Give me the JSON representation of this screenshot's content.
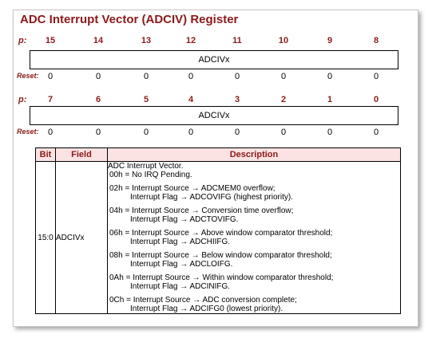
{
  "title": "ADC Interrupt Vector (ADCIV) Register",
  "bit_label": "p:",
  "reset_label": "Reset:",
  "upper": {
    "bits": [
      "15",
      "14",
      "13",
      "12",
      "11",
      "10",
      "9",
      "8"
    ],
    "field": "ADCIVx",
    "resets": [
      "0",
      "0",
      "0",
      "0",
      "0",
      "0",
      "0",
      "0"
    ]
  },
  "lower": {
    "bits": [
      "7",
      "6",
      "5",
      "4",
      "3",
      "2",
      "1",
      "0"
    ],
    "field": "ADCIVx",
    "resets": [
      "0",
      "0",
      "0",
      "0",
      "0",
      "0",
      "0",
      "0"
    ]
  },
  "table": {
    "headers": [
      "Bit",
      "Field",
      "Description"
    ],
    "row": {
      "bit": "15:0",
      "field": "ADCIVx",
      "intro": "ADC Interrupt Vector.",
      "entries": [
        [
          "00h = No IRQ Pending."
        ],
        [
          "02h = Interrupt Source → ADCMEM0 overflow;",
          "Interrupt Flag → ADCOVIFG (highest priority)."
        ],
        [
          "04h = Interrupt Source → Conversion time overflow;",
          "Interrupt Flag → ADCTOVIFG."
        ],
        [
          "06h = Interrupt Source → Above window comparator threshold;",
          "Interrupt Flag → ADCHIIFG."
        ],
        [
          "08h = Interrupt Source → Below window comparator threshold;",
          "Interrupt Flag → ADCLOIFG."
        ],
        [
          "0Ah = Interrupt Source → Within window comparator threshold;",
          "Interrupt Flag → ADCINIFG."
        ],
        [
          "0Ch = Interrupt Source → ADC conversion complete;",
          "Interrupt Flag → ADCIFG0 (lowest priority)."
        ]
      ]
    }
  }
}
